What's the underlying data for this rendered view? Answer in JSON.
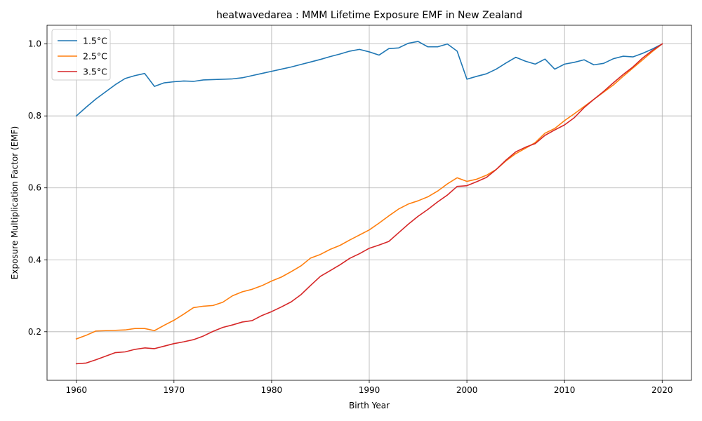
{
  "chart_data": {
    "type": "line",
    "title": "heatwavedarea : MMM Lifetime Exposure EMF in New Zealand",
    "xlabel": "Birth Year",
    "ylabel": "Exposure Multiplication Factor (EMF)",
    "xlim": [
      1957,
      2023
    ],
    "ylim": [
      0.065,
      1.052
    ],
    "xticks": [
      1960,
      1970,
      1980,
      1990,
      2000,
      2010,
      2020
    ],
    "yticks": [
      0.2,
      0.4,
      0.6,
      0.8,
      1.0
    ],
    "xtick_labels": [
      "1960",
      "1970",
      "1980",
      "1990",
      "2000",
      "2010",
      "2020"
    ],
    "ytick_labels": [
      "0.2",
      "0.4",
      "0.6",
      "0.8",
      "1.0"
    ],
    "grid": true,
    "legend_position": "top-left",
    "x": [
      1960,
      1961,
      1962,
      1963,
      1964,
      1965,
      1966,
      1967,
      1968,
      1969,
      1970,
      1971,
      1972,
      1973,
      1974,
      1975,
      1976,
      1977,
      1978,
      1979,
      1980,
      1981,
      1982,
      1983,
      1984,
      1985,
      1986,
      1987,
      1988,
      1989,
      1990,
      1991,
      1992,
      1993,
      1994,
      1995,
      1996,
      1997,
      1998,
      1999,
      2000,
      2001,
      2002,
      2003,
      2004,
      2005,
      2006,
      2007,
      2008,
      2009,
      2010,
      2011,
      2012,
      2013,
      2014,
      2015,
      2016,
      2017,
      2018,
      2019,
      2020
    ],
    "series": [
      {
        "name": "1.5°C",
        "color": "#1f77b4",
        "values": [
          0.8,
          0.824,
          0.847,
          0.867,
          0.887,
          0.904,
          0.912,
          0.918,
          0.882,
          0.892,
          0.895,
          0.897,
          0.896,
          0.9,
          0.901,
          0.902,
          0.903,
          0.906,
          0.912,
          0.918,
          0.924,
          0.93,
          0.936,
          0.943,
          0.95,
          0.957,
          0.965,
          0.972,
          0.98,
          0.985,
          0.978,
          0.969,
          0.987,
          0.989,
          1.002,
          1.007,
          0.992,
          0.992,
          1.0,
          0.98,
          0.902,
          0.91,
          0.917,
          0.93,
          0.947,
          0.963,
          0.952,
          0.944,
          0.958,
          0.93,
          0.944,
          0.949,
          0.956,
          0.942,
          0.946,
          0.959,
          0.966,
          0.964,
          0.974,
          0.986,
          1.0
        ]
      },
      {
        "name": "2.5°C",
        "color": "#ff7f0e",
        "values": [
          0.18,
          0.19,
          0.202,
          0.203,
          0.204,
          0.205,
          0.209,
          0.209,
          0.203,
          0.218,
          0.232,
          0.249,
          0.267,
          0.271,
          0.273,
          0.282,
          0.3,
          0.311,
          0.318,
          0.328,
          0.341,
          0.352,
          0.367,
          0.383,
          0.405,
          0.415,
          0.429,
          0.44,
          0.455,
          0.469,
          0.483,
          0.502,
          0.522,
          0.541,
          0.555,
          0.564,
          0.575,
          0.591,
          0.611,
          0.628,
          0.618,
          0.624,
          0.635,
          0.651,
          0.675,
          0.695,
          0.71,
          0.726,
          0.752,
          0.765,
          0.787,
          0.806,
          0.826,
          0.846,
          0.866,
          0.886,
          0.91,
          0.933,
          0.956,
          0.979,
          1.0
        ]
      },
      {
        "name": "3.5°C",
        "color": "#d62728",
        "values": [
          0.111,
          0.113,
          0.122,
          0.132,
          0.142,
          0.144,
          0.151,
          0.155,
          0.153,
          0.16,
          0.167,
          0.172,
          0.178,
          0.188,
          0.201,
          0.212,
          0.219,
          0.227,
          0.231,
          0.245,
          0.256,
          0.269,
          0.283,
          0.303,
          0.329,
          0.354,
          0.37,
          0.386,
          0.404,
          0.417,
          0.432,
          0.441,
          0.451,
          0.475,
          0.499,
          0.521,
          0.54,
          0.561,
          0.58,
          0.604,
          0.606,
          0.617,
          0.629,
          0.651,
          0.677,
          0.7,
          0.713,
          0.723,
          0.746,
          0.761,
          0.775,
          0.795,
          0.823,
          0.846,
          0.868,
          0.892,
          0.915,
          0.936,
          0.961,
          0.982,
          1.0
        ]
      }
    ]
  },
  "style": {
    "grid_color": "#b0b0b0",
    "frame_color": "#000000",
    "legend_border_color": "#cccccc"
  }
}
